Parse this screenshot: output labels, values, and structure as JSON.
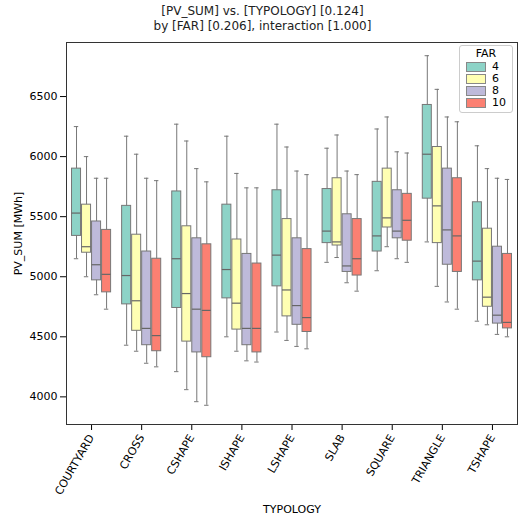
{
  "chart_data": {
    "type": "boxplot",
    "title": "[PV_SUM] vs. [TYPOLOGY] [0.124]",
    "subtitle": "by [FAR] [0.206], interaction [1.000]",
    "x_label": "TYPOLOGY",
    "y_label": "PV_SUM [MWh]",
    "categories": [
      "COURTYARD",
      "CROSS",
      "CSHAPE",
      "ISHAPE",
      "LSHAPE",
      "SLAB",
      "SQUARE",
      "TRIANGLE",
      "TSHAPE"
    ],
    "legend_title": "FAR",
    "legend": "upper right",
    "grid": false,
    "ylim": [
      3770,
      6950
    ],
    "yticks": [
      4000,
      4500,
      5000,
      5500,
      6000,
      6500
    ],
    "series": [
      {
        "name": "4",
        "color": "#8dd3c7",
        "max": [
          6250,
          6170,
          6270,
          6170,
          6270,
          6070,
          6230,
          6840,
          6090
        ],
        "q3": [
          5900,
          5590,
          5710,
          5600,
          5720,
          5730,
          5790,
          6430,
          5620
        ],
        "median": [
          5530,
          5010,
          5150,
          5060,
          5180,
          5380,
          5340,
          6020,
          5130
        ],
        "q1": [
          5340,
          4770,
          4740,
          4820,
          4920,
          5280,
          5210,
          5650,
          4970
        ],
        "min": [
          5150,
          4430,
          4210,
          4500,
          4540,
          5120,
          5050,
          5290,
          4630
        ]
      },
      {
        "name": "6",
        "color": "#ffffb3",
        "max": [
          6000,
          6020,
          6130,
          5860,
          6080,
          6180,
          6330,
          6560,
          5900
        ],
        "q3": [
          5600,
          5350,
          5420,
          5310,
          5480,
          5820,
          5900,
          6080,
          5400
        ],
        "median": [
          5250,
          4800,
          4860,
          4780,
          4890,
          5290,
          5490,
          5590,
          4830
        ],
        "q1": [
          5200,
          4550,
          4460,
          4560,
          4670,
          5260,
          5410,
          5280,
          4750
        ],
        "min": [
          5000,
          4380,
          4060,
          4380,
          4470,
          5160,
          5250,
          4920,
          4600
        ]
      },
      {
        "name": "8",
        "color": "#bebada",
        "max": [
          5820,
          5820,
          5900,
          5740,
          5880,
          5880,
          6040,
          6330,
          5820
        ],
        "q3": [
          5460,
          5210,
          5320,
          5190,
          5320,
          5520,
          5720,
          5900,
          5250
        ],
        "median": [
          5100,
          4570,
          4730,
          4570,
          4760,
          5090,
          5380,
          5390,
          4680
        ],
        "q1": [
          4970,
          4430,
          4370,
          4430,
          4600,
          5040,
          5320,
          5100,
          4610
        ],
        "min": [
          4850,
          4280,
          3960,
          4300,
          4420,
          4950,
          5150,
          4790,
          4520
        ]
      },
      {
        "name": "10",
        "color": "#fb8072",
        "max": [
          5820,
          5800,
          5790,
          5740,
          5850,
          5850,
          6030,
          6290,
          5810
        ],
        "q3": [
          5390,
          5150,
          5270,
          5110,
          5230,
          5480,
          5690,
          5820,
          5190
        ],
        "median": [
          5020,
          4510,
          4720,
          4570,
          4660,
          5150,
          5470,
          5340,
          4620
        ],
        "q1": [
          4870,
          4380,
          4330,
          4370,
          4540,
          5010,
          5300,
          5040,
          4570
        ],
        "min": [
          4730,
          4250,
          3930,
          4290,
          4400,
          4880,
          5120,
          4730,
          4500
        ]
      }
    ]
  }
}
